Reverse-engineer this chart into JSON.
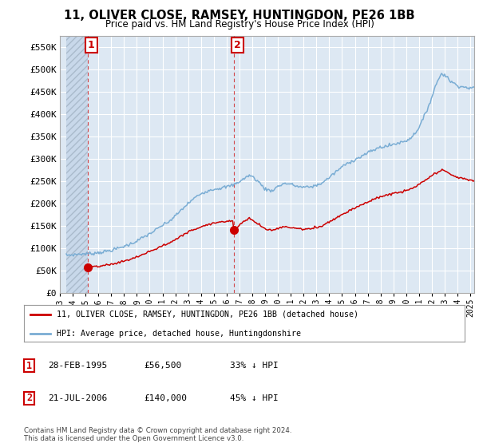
{
  "title": "11, OLIVER CLOSE, RAMSEY, HUNTINGDON, PE26 1BB",
  "subtitle": "Price paid vs. HM Land Registry's House Price Index (HPI)",
  "ylabel_ticks": [
    "£0",
    "£50K",
    "£100K",
    "£150K",
    "£200K",
    "£250K",
    "£300K",
    "£350K",
    "£400K",
    "£450K",
    "£500K",
    "£550K"
  ],
  "ytick_values": [
    0,
    50000,
    100000,
    150000,
    200000,
    250000,
    300000,
    350000,
    400000,
    450000,
    500000,
    550000
  ],
  "ylim": [
    0,
    575000
  ],
  "sale1_x": 1995.16,
  "sale1_y": 56500,
  "sale2_x": 2006.55,
  "sale2_y": 140000,
  "hpi_line_color": "#7aadd4",
  "price_line_color": "#cc0000",
  "sale_marker_color": "#cc0000",
  "sale_marker_size": 7,
  "background_color": "#ffffff",
  "plot_bg_color": "#dde8f3",
  "hatch_bg_color": "#c8d8ea",
  "grid_color": "#ffffff",
  "legend_label_price": "11, OLIVER CLOSE, RAMSEY, HUNTINGDON, PE26 1BB (detached house)",
  "legend_label_hpi": "HPI: Average price, detached house, Huntingdonshire",
  "footnote": "Contains HM Land Registry data © Crown copyright and database right 2024.\nThis data is licensed under the Open Government Licence v3.0.",
  "xmin": 1993.5,
  "xmax": 2025.3
}
